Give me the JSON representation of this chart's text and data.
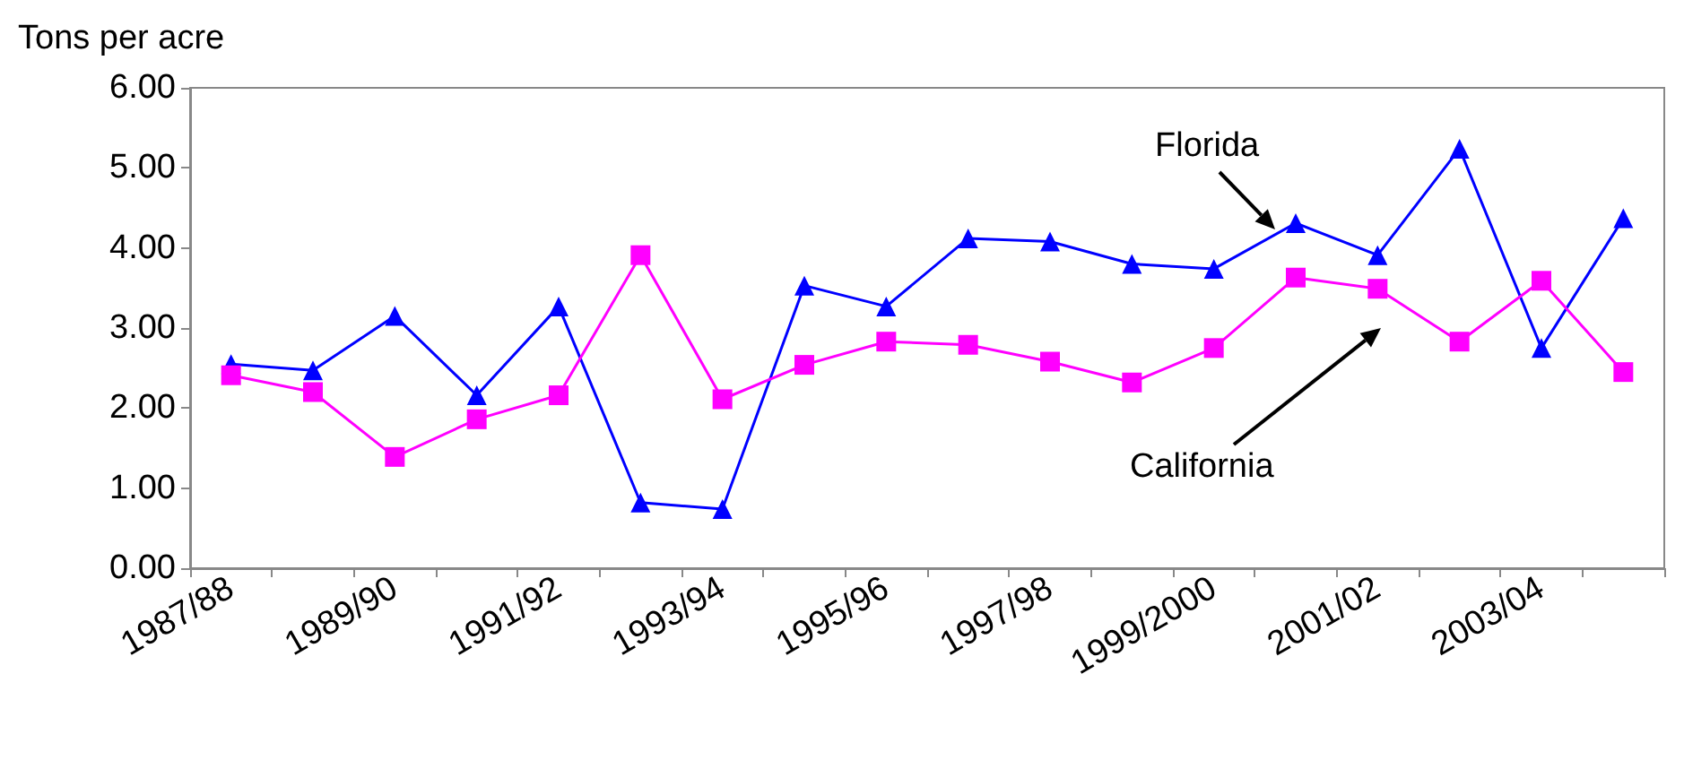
{
  "chart_data": {
    "type": "line",
    "ylabel": "Tons per acre",
    "categories": [
      "1987/88",
      null,
      "1989/90",
      null,
      "1991/92",
      null,
      "1993/94",
      null,
      "1995/96",
      null,
      "1997/98",
      null,
      "1999/2000",
      null,
      "2001/02",
      null,
      "2003/04",
      null
    ],
    "series": [
      {
        "name": "Florida",
        "color": "#0000ff",
        "marker": "triangle",
        "values": [
          2.55,
          2.47,
          3.15,
          2.16,
          3.27,
          0.82,
          0.74,
          3.53,
          3.27,
          4.12,
          4.08,
          3.8,
          3.74,
          4.31,
          3.91,
          5.24,
          2.75,
          4.37
        ]
      },
      {
        "name": "California",
        "color": "#ff00ff",
        "marker": "square",
        "values": [
          2.41,
          2.2,
          1.39,
          1.86,
          2.16,
          3.91,
          2.11,
          2.54,
          2.83,
          2.79,
          2.58,
          2.32,
          2.75,
          3.63,
          3.49,
          2.83,
          3.59,
          2.45
        ]
      }
    ],
    "ylim": [
      0,
      6
    ],
    "yticks": [
      {
        "value": 0,
        "label": "0.00"
      },
      {
        "value": 1,
        "label": "1.00"
      },
      {
        "value": 2,
        "label": "2.00"
      },
      {
        "value": 3,
        "label": "3.00"
      },
      {
        "value": 4,
        "label": "4.00"
      },
      {
        "value": 5,
        "label": "5.00"
      },
      {
        "value": 6,
        "label": "6.00"
      }
    ],
    "grid": false,
    "legend": false
  }
}
